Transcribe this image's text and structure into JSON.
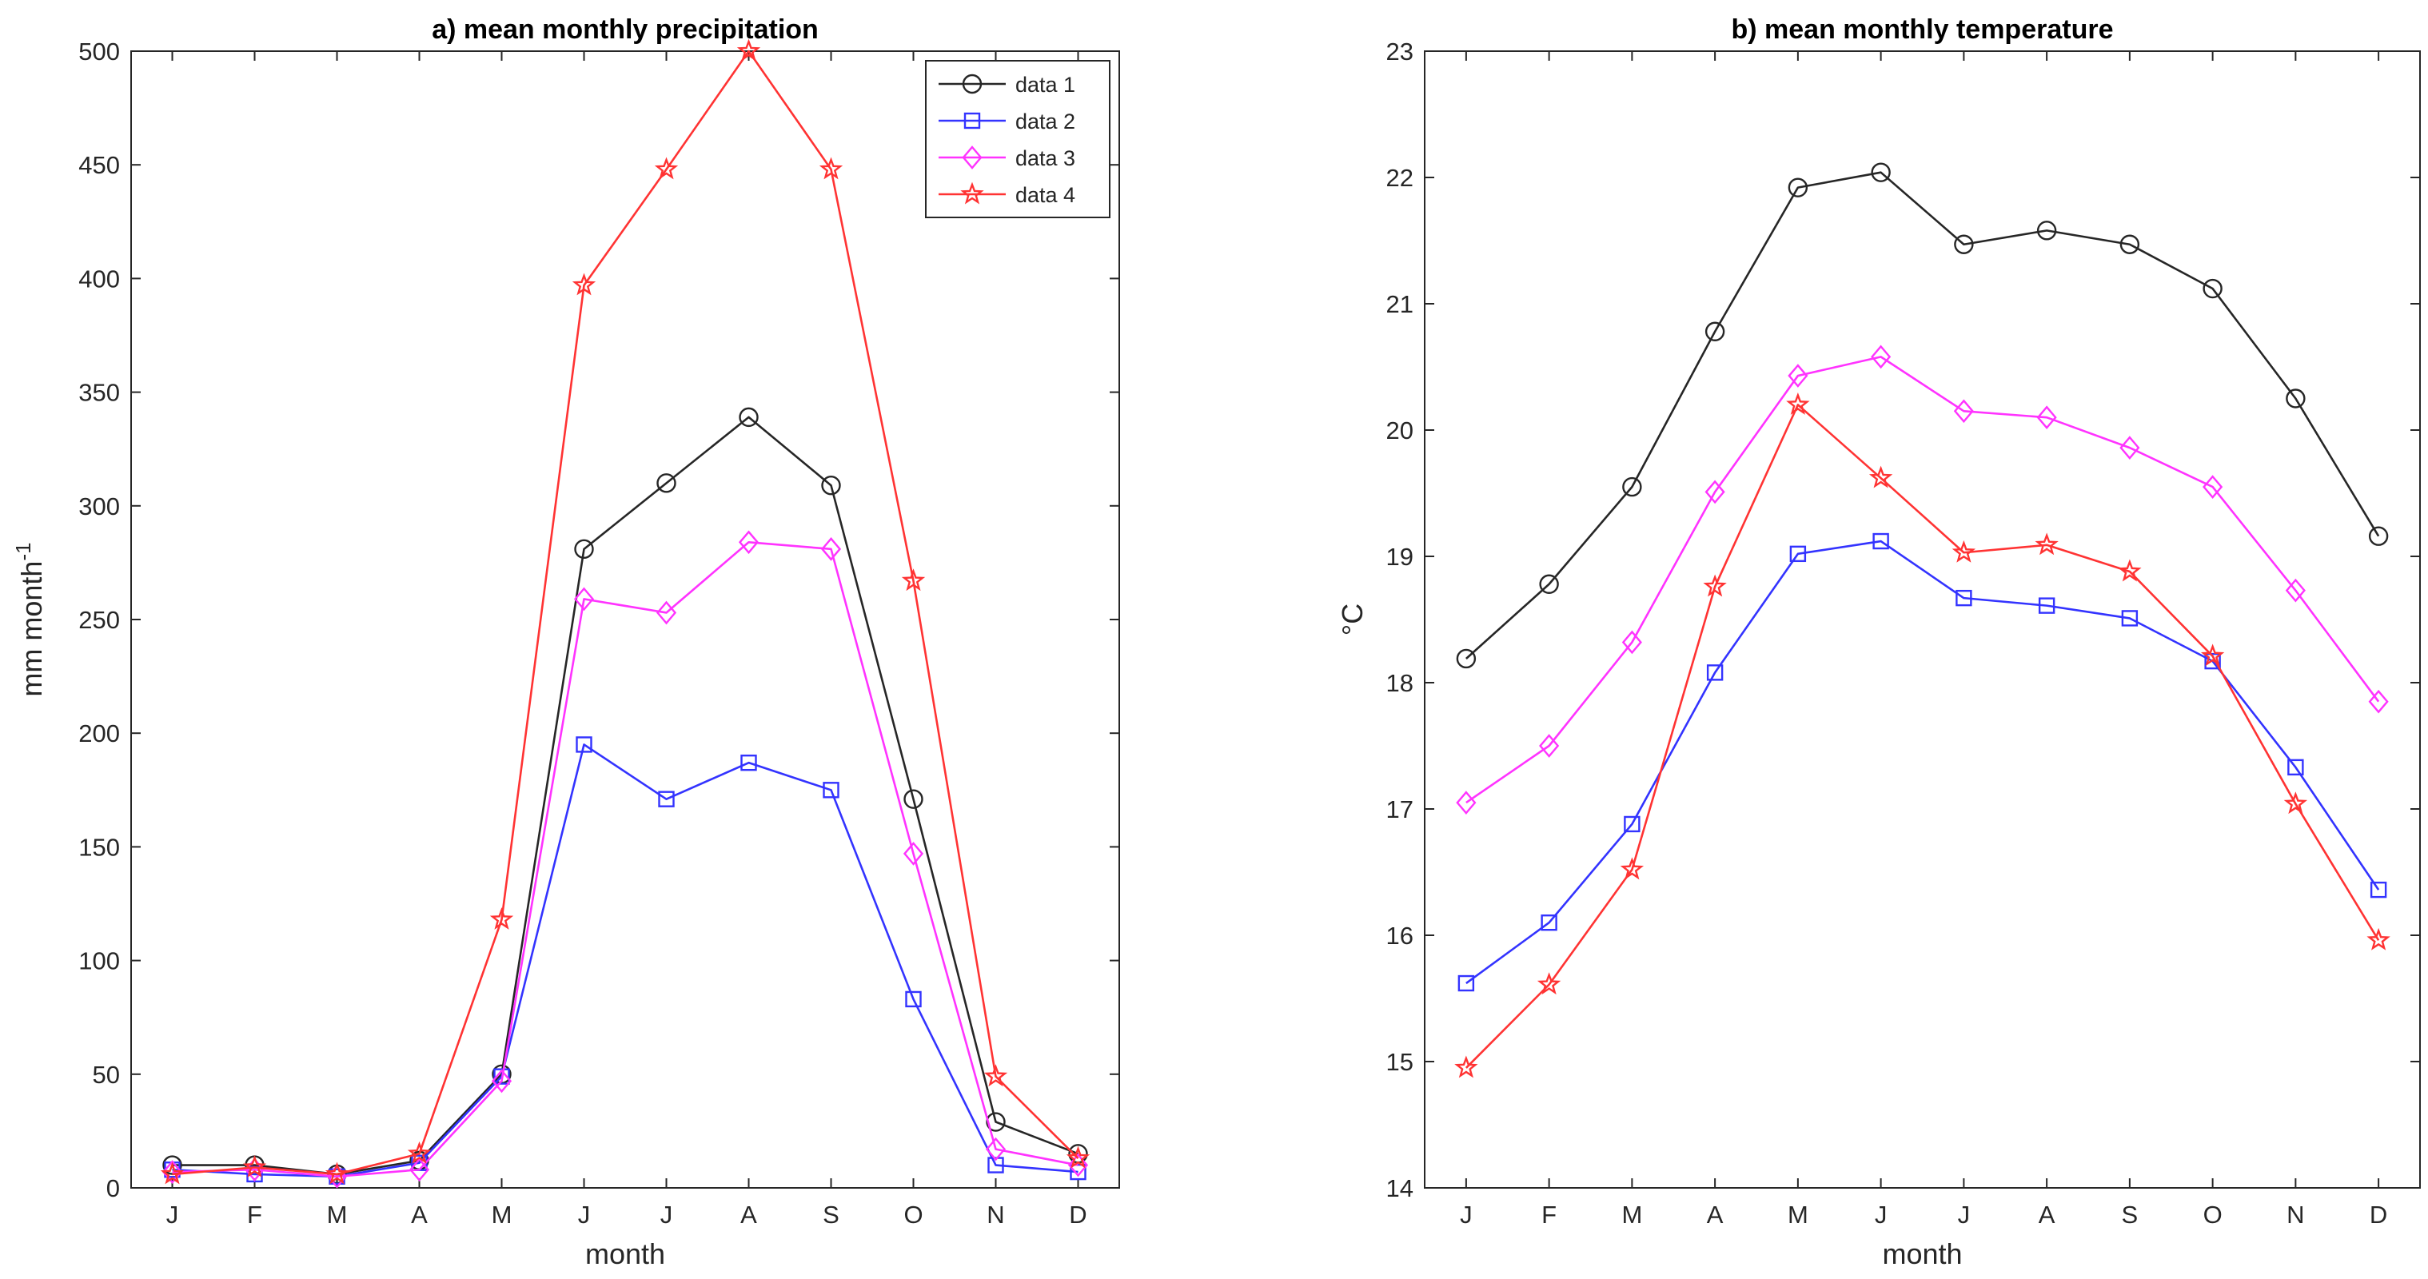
{
  "chart_data": [
    {
      "type": "line",
      "title": "a) mean monthly precipitation",
      "xlabel": "month",
      "ylabel": "mm month",
      "ylabel_sup": "-1",
      "categories": [
        "J",
        "F",
        "M",
        "A",
        "M",
        "J",
        "J",
        "A",
        "S",
        "O",
        "N",
        "D"
      ],
      "ylim": [
        0,
        500
      ],
      "yticks": [
        0,
        50,
        100,
        150,
        200,
        250,
        300,
        350,
        400,
        450,
        500
      ],
      "grid": false,
      "legend_position": "top-right",
      "series": [
        {
          "name": "data 1",
          "color": "#262626",
          "marker": "circle",
          "values": [
            10,
            10,
            6,
            12,
            50,
            281,
            310,
            339,
            309,
            171,
            29,
            15
          ]
        },
        {
          "name": "data 2",
          "color": "#3333ff",
          "marker": "square",
          "values": [
            8,
            6,
            5,
            11,
            49,
            195,
            171,
            187,
            175,
            83,
            10,
            7
          ]
        },
        {
          "name": "data 3",
          "color": "#ff33ff",
          "marker": "diamond",
          "values": [
            7,
            8,
            5,
            8,
            47,
            259,
            253,
            284,
            281,
            147,
            17,
            10
          ]
        },
        {
          "name": "data 4",
          "color": "#ff3333",
          "marker": "star",
          "values": [
            6,
            9,
            6,
            15,
            118,
            397,
            448,
            500,
            448,
            267,
            49,
            13
          ]
        }
      ]
    },
    {
      "type": "line",
      "title": "b) mean monthly temperature",
      "xlabel": "month",
      "ylabel": "°C",
      "categories": [
        "J",
        "F",
        "M",
        "A",
        "M",
        "J",
        "J",
        "A",
        "S",
        "O",
        "N",
        "D"
      ],
      "ylim": [
        14,
        23
      ],
      "yticks": [
        14,
        15,
        16,
        17,
        18,
        19,
        20,
        21,
        22,
        23
      ],
      "grid": false,
      "series": [
        {
          "name": "data 1",
          "color": "#262626",
          "marker": "circle",
          "values": [
            18.19,
            18.78,
            19.55,
            20.78,
            21.92,
            22.04,
            21.47,
            21.58,
            21.47,
            21.12,
            20.25,
            19.16
          ]
        },
        {
          "name": "data 2",
          "color": "#3333ff",
          "marker": "square",
          "values": [
            15.62,
            16.1,
            16.88,
            18.08,
            19.02,
            19.12,
            18.67,
            18.61,
            18.51,
            18.17,
            17.33,
            16.36
          ]
        },
        {
          "name": "data 3",
          "color": "#ff33ff",
          "marker": "diamond",
          "values": [
            17.05,
            17.5,
            18.32,
            19.51,
            20.43,
            20.58,
            20.15,
            20.1,
            19.86,
            19.55,
            18.73,
            17.85
          ]
        },
        {
          "name": "data 4",
          "color": "#ff3333",
          "marker": "star",
          "values": [
            14.95,
            15.61,
            16.52,
            18.76,
            20.2,
            19.62,
            19.03,
            19.09,
            18.88,
            18.21,
            17.04,
            15.96
          ]
        }
      ]
    }
  ]
}
